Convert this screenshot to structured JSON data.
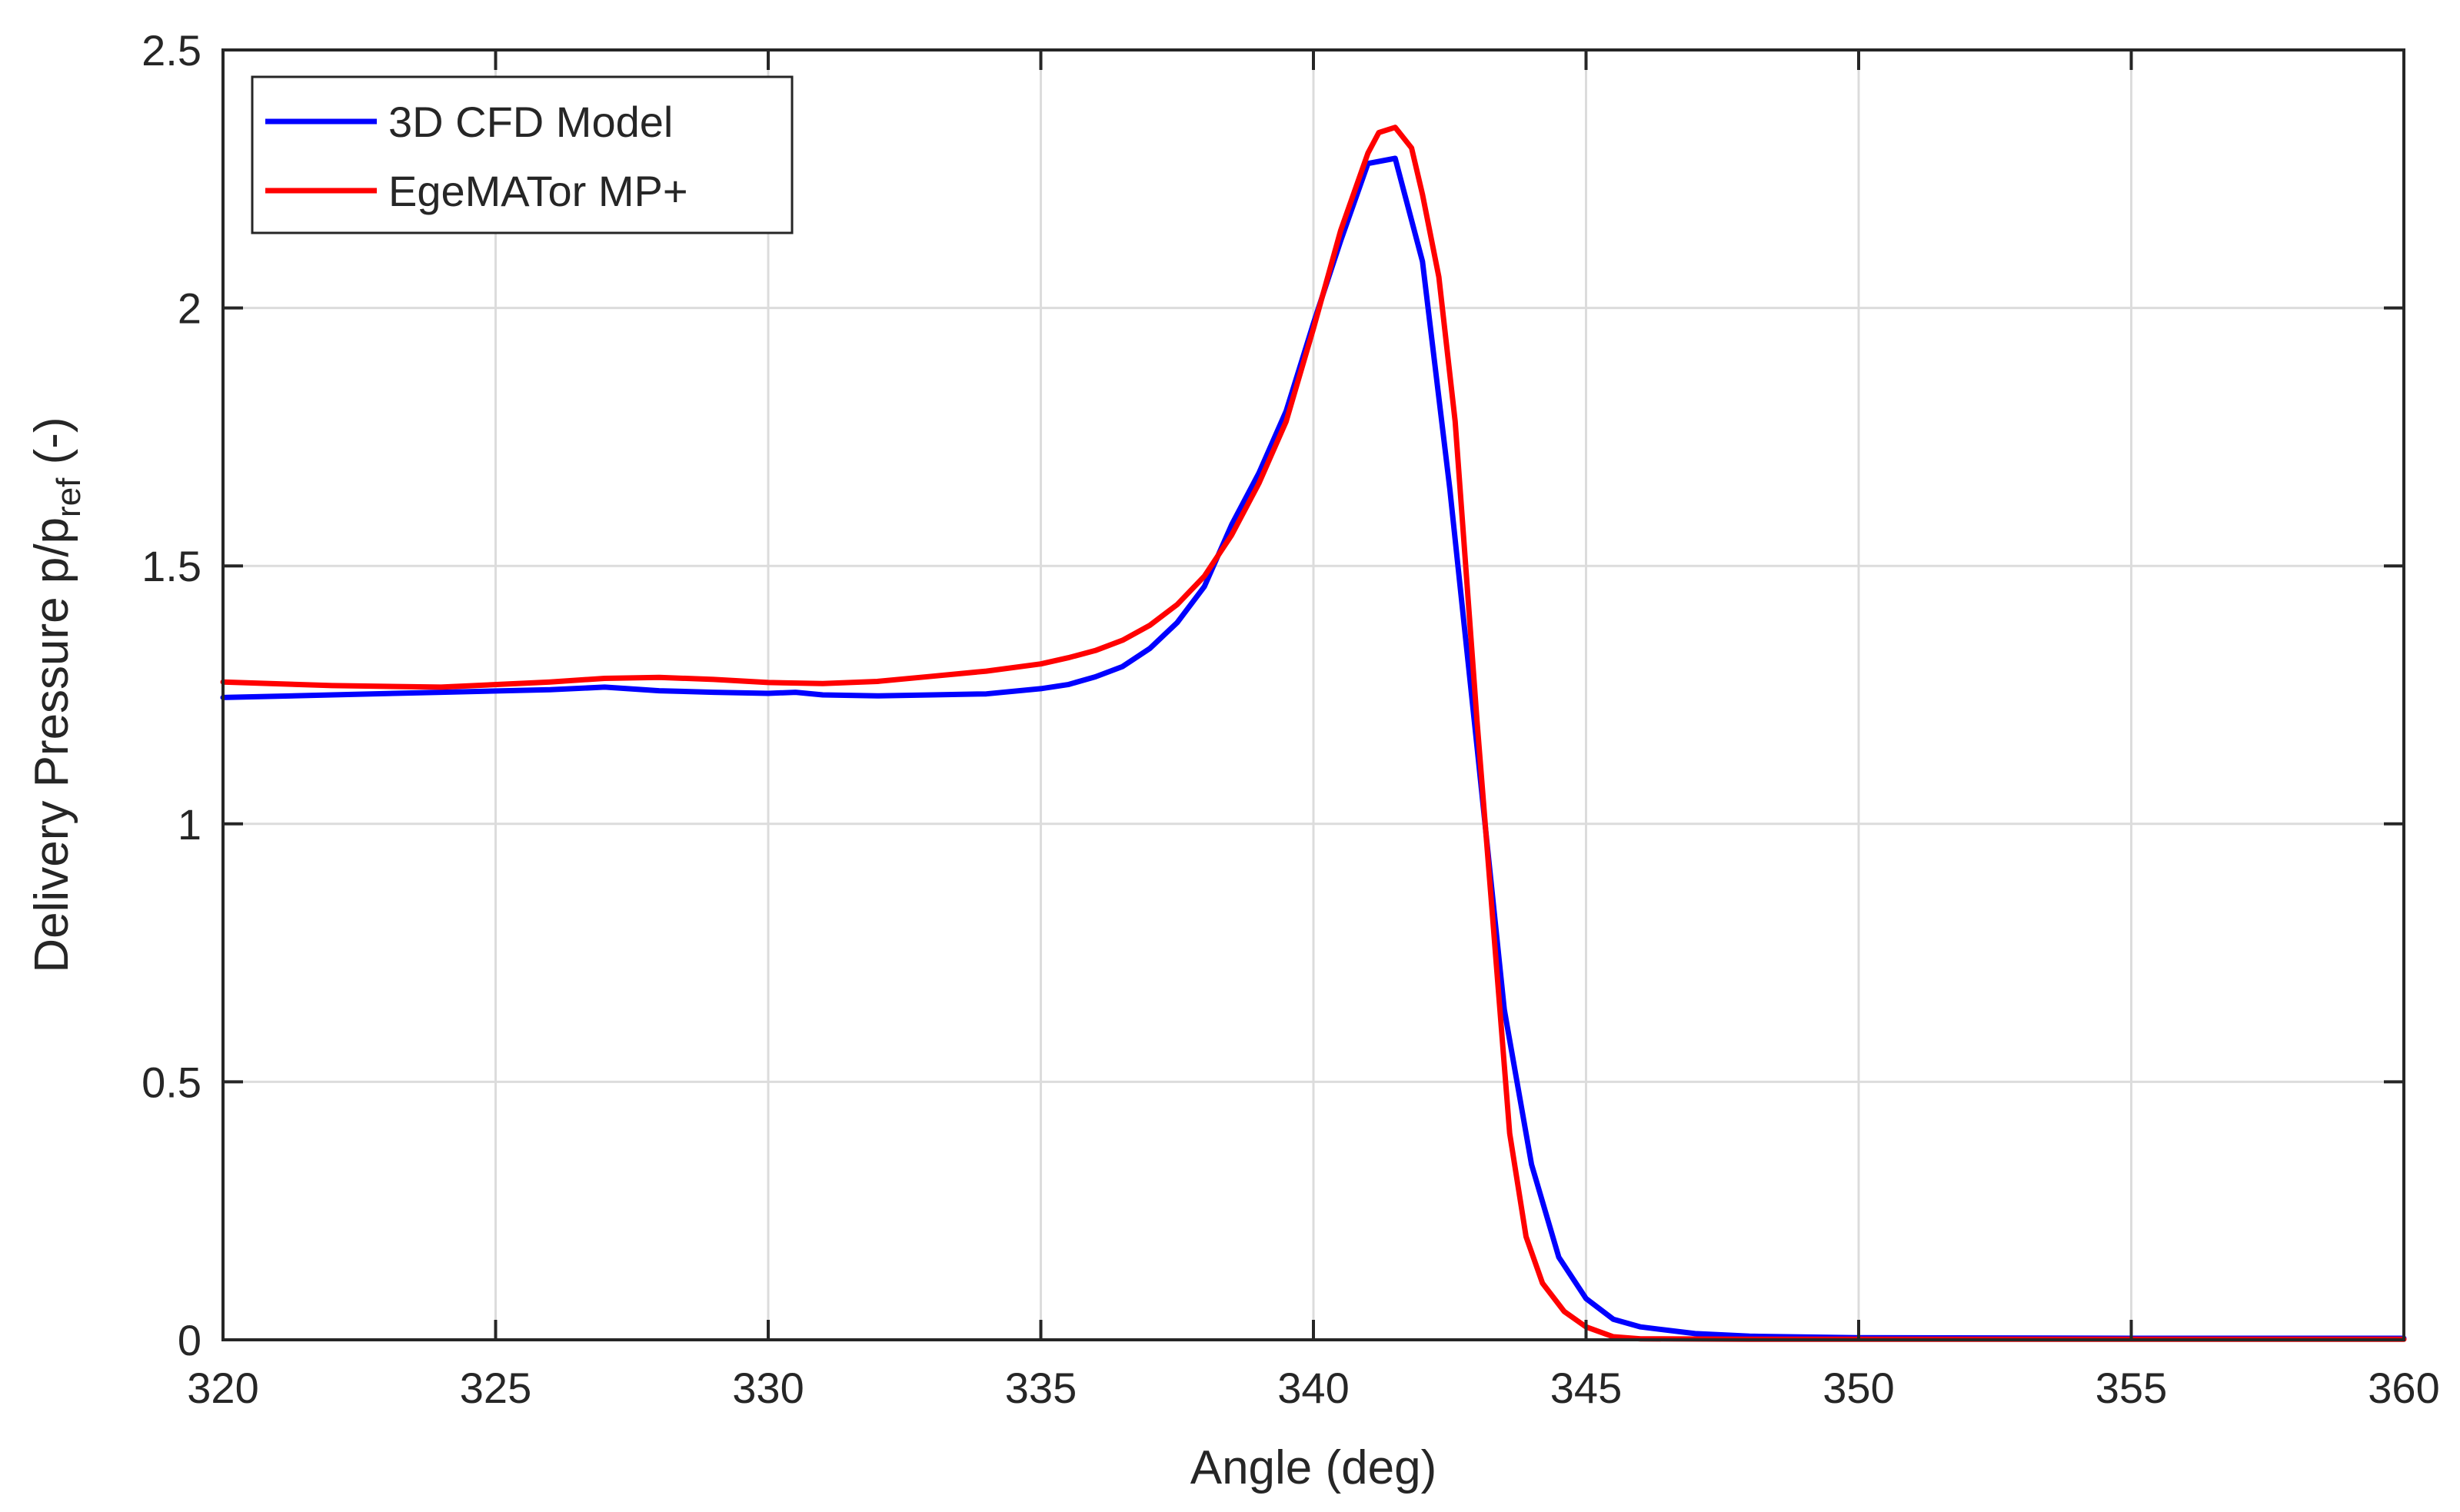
{
  "chart_data": {
    "type": "line",
    "title": "",
    "xlabel": "Angle (deg)",
    "ylabel": {
      "main": "Delivery Pressure p/p",
      "subscript": "ref",
      "suffix": " (-)"
    },
    "xlim": [
      320,
      360
    ],
    "ylim": [
      0,
      2.5
    ],
    "xticks": [
      320,
      325,
      330,
      335,
      340,
      345,
      350,
      355,
      360
    ],
    "xtick_labels": [
      "320",
      "325",
      "330",
      "335",
      "340",
      "345",
      "350",
      "355",
      "360"
    ],
    "yticks": [
      0,
      0.5,
      1,
      1.5,
      2,
      2.5
    ],
    "ytick_labels": [
      "0",
      "0.5",
      "1",
      "1.5",
      "2",
      "2.5"
    ],
    "grid": true,
    "legend_position": "top-left",
    "series": [
      {
        "name": "3D CFD Model",
        "color": "#0000ff",
        "x": [
          320,
          322,
          324,
          326,
          327,
          328,
          329,
          330,
          330.5,
          331,
          332,
          333,
          334,
          335,
          335.5,
          336,
          336.5,
          337,
          337.5,
          338,
          338.5,
          339,
          339.5,
          340,
          340.5,
          341,
          341.5,
          342,
          342.5,
          343,
          343.5,
          344,
          344.5,
          345,
          345.5,
          346,
          347,
          348,
          350,
          355,
          360
        ],
        "y": [
          1.245,
          1.25,
          1.255,
          1.26,
          1.265,
          1.258,
          1.255,
          1.253,
          1.255,
          1.25,
          1.248,
          1.25,
          1.252,
          1.262,
          1.27,
          1.285,
          1.305,
          1.34,
          1.39,
          1.46,
          1.58,
          1.68,
          1.8,
          1.97,
          2.13,
          2.28,
          2.29,
          2.09,
          1.65,
          1.15,
          0.64,
          0.34,
          0.16,
          0.08,
          0.04,
          0.025,
          0.012,
          0.007,
          0.004,
          0.003,
          0.003
        ]
      },
      {
        "name": "EgeMATor MP+",
        "color": "#ff0000",
        "x": [
          320,
          322,
          324,
          326,
          327,
          328,
          329,
          330,
          331,
          332,
          333,
          334,
          335,
          335.5,
          336,
          336.5,
          337,
          337.5,
          338,
          338.5,
          339,
          339.5,
          340,
          340.5,
          341,
          341.2,
          341.5,
          341.8,
          342,
          342.3,
          342.6,
          343,
          343.3,
          343.6,
          343.9,
          344.2,
          344.6,
          345,
          345.5,
          346,
          348,
          350,
          355,
          360
        ],
        "y": [
          1.275,
          1.268,
          1.265,
          1.275,
          1.282,
          1.284,
          1.28,
          1.274,
          1.272,
          1.276,
          1.286,
          1.296,
          1.31,
          1.322,
          1.336,
          1.356,
          1.385,
          1.425,
          1.48,
          1.56,
          1.66,
          1.78,
          1.96,
          2.15,
          2.3,
          2.34,
          2.35,
          2.31,
          2.22,
          2.06,
          1.78,
          1.2,
          0.8,
          0.4,
          0.2,
          0.11,
          0.055,
          0.025,
          0.006,
          0.002,
          0.001,
          0.001,
          0.001,
          0.001
        ]
      }
    ]
  }
}
